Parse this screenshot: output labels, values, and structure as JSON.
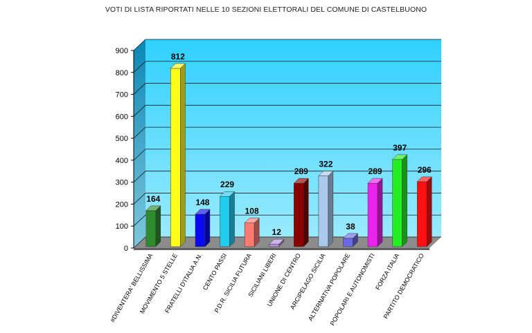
{
  "chart_data": {
    "type": "bar",
    "title": "VOTI DI LISTA RIPORTATI NELLE 10 SEZIONI ELETTORALI DEL COMUNE DI CASTELBUONO",
    "xlabel": "",
    "ylabel": "",
    "ylim": [
      0,
      900
    ],
    "yticks": [
      "0",
      "100",
      "200",
      "300",
      "400",
      "500",
      "600",
      "700",
      "800",
      "900"
    ],
    "grid": true,
    "legend": "none",
    "categories": [
      "#DIVENTERA' BELLISSIMA",
      "MOVIMENTO 5 STELLE",
      "FRATELLI D'ITALIA A.N.",
      "CENTO PASSI",
      "P.D.R. SICILIA FUTURA",
      "SICILIANI LIBERI",
      "UNIONE DI CENTRO",
      "ARCIPELAGO SICILIA",
      "ALTERNATIVA POPOLARE",
      "POPOLARI E AUTONOMISTI",
      "FORZA ITALIA",
      "PARTITO DEMOCRATICO"
    ],
    "values": [
      164,
      812,
      148,
      229,
      108,
      12,
      289,
      322,
      38,
      289,
      397,
      296
    ],
    "value_labels": [
      "164",
      "812",
      "148",
      "229",
      "108",
      "12",
      "289",
      "322",
      "38",
      "289",
      "397",
      "296"
    ],
    "colors": [
      "#2e8b2e",
      "#ffff1a",
      "#0a0aee",
      "#22ccee",
      "#ff7a70",
      "#b58ce0",
      "#880000",
      "#a9c8ec",
      "#6a6ae6",
      "#ee22ee",
      "#22ee22",
      "#ff1010"
    ],
    "background_color": "#29c4ff"
  }
}
